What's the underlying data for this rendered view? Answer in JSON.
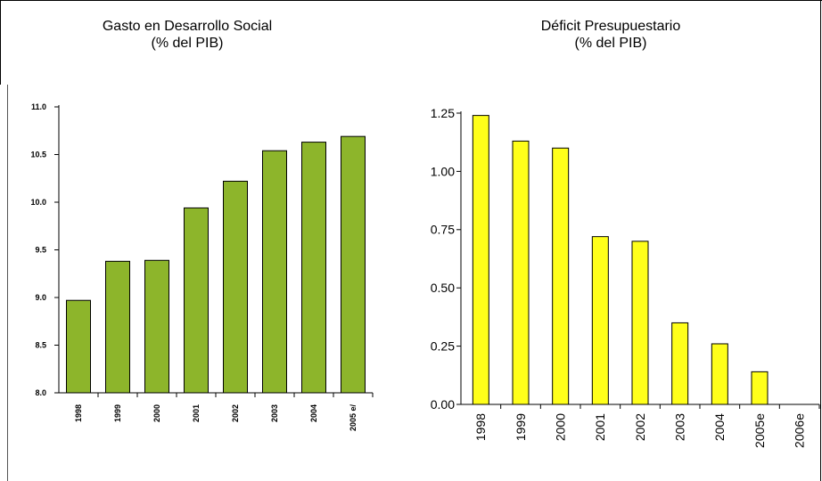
{
  "chart_data": [
    {
      "type": "bar",
      "title": "Gasto en Desarrollo Social",
      "subtitle": "(% del PIB)",
      "categories": [
        "1998",
        "1999",
        "2000",
        "2001",
        "2002",
        "2003",
        "2004",
        "2005 e/"
      ],
      "values": [
        8.97,
        9.38,
        9.39,
        9.94,
        10.22,
        10.54,
        10.63,
        10.69
      ],
      "ylim": [
        8.0,
        11.0
      ],
      "yticks": [
        "8.0",
        "8.5",
        "9.0",
        "9.5",
        "10.0",
        "10.5",
        "11.0"
      ],
      "color": "#8db52b",
      "grid": false
    },
    {
      "type": "bar",
      "title": "Déficit Presupuestario",
      "subtitle": "(% del PIB)",
      "categories": [
        "1998",
        "1999",
        "2000",
        "2001",
        "2002",
        "2003",
        "2004",
        "2005e",
        "2006e"
      ],
      "values": [
        1.24,
        1.13,
        1.1,
        0.72,
        0.7,
        0.35,
        0.26,
        0.14,
        0.0
      ],
      "ylim": [
        0.0,
        1.25
      ],
      "yticks": [
        "0.00",
        "0.25",
        "0.50",
        "0.75",
        "1.00",
        "1.25"
      ],
      "color": "#ffff1a",
      "grid": false
    }
  ]
}
